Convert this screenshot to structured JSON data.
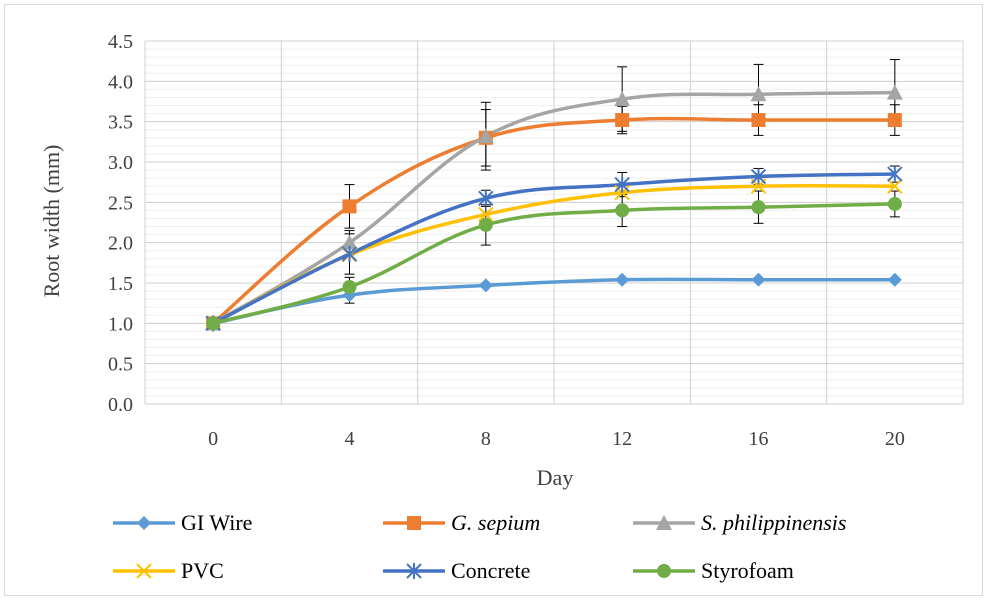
{
  "chart_data": {
    "type": "line",
    "xlabel": "Day",
    "ylabel": "Root width (mm)",
    "categories": [
      "0",
      "4",
      "8",
      "12",
      "16",
      "20"
    ],
    "y_ticks": [
      "0.0",
      "0.5",
      "1.0",
      "1.5",
      "2.0",
      "2.5",
      "3.0",
      "3.5",
      "4.0",
      "4.5"
    ],
    "ylim": [
      0,
      4.5
    ],
    "grid": "major and minor horizontal, major vertical",
    "legend_position": "bottom",
    "series": [
      {
        "name": "GI Wire",
        "italic": false,
        "color": "#5B9BD5",
        "marker": "diamond",
        "values": [
          1.0,
          1.35,
          1.47,
          1.54,
          1.54,
          1.54
        ],
        "errors": [
          0,
          0.1,
          0,
          0,
          0,
          0
        ]
      },
      {
        "name": "G. sepium",
        "italic": true,
        "color": "#ED7D31",
        "marker": "square",
        "values": [
          1.0,
          2.45,
          3.3,
          3.52,
          3.52,
          3.52
        ],
        "errors": [
          0,
          0.27,
          0.35,
          0.17,
          0.19,
          0.19
        ]
      },
      {
        "name": "S. philippinensis",
        "italic": true,
        "color": "#A5A5A5",
        "marker": "triangle",
        "values": [
          1.0,
          2.0,
          3.32,
          3.78,
          3.84,
          3.86
        ],
        "errors": [
          0,
          0.15,
          0.42,
          0.4,
          0.37,
          0.41
        ]
      },
      {
        "name": "PVC",
        "italic": false,
        "color": "#FFC000",
        "marker": "x",
        "values": [
          1.0,
          1.85,
          2.35,
          2.62,
          2.7,
          2.7
        ],
        "errors": [
          0,
          0,
          0,
          0,
          0,
          0
        ]
      },
      {
        "name": "Concrete",
        "italic": false,
        "color": "#4472C4",
        "marker": "asterisk",
        "values": [
          1.0,
          1.86,
          2.55,
          2.72,
          2.82,
          2.85
        ],
        "errors": [
          0,
          0.25,
          0.1,
          0.15,
          0.1,
          0.1
        ]
      },
      {
        "name": "Styrofoam",
        "italic": false,
        "color": "#70AD47",
        "marker": "circle",
        "values": [
          1.0,
          1.45,
          2.22,
          2.4,
          2.44,
          2.48
        ],
        "errors": [
          0,
          0.12,
          0.25,
          0.2,
          0.2,
          0.16
        ]
      }
    ]
  }
}
